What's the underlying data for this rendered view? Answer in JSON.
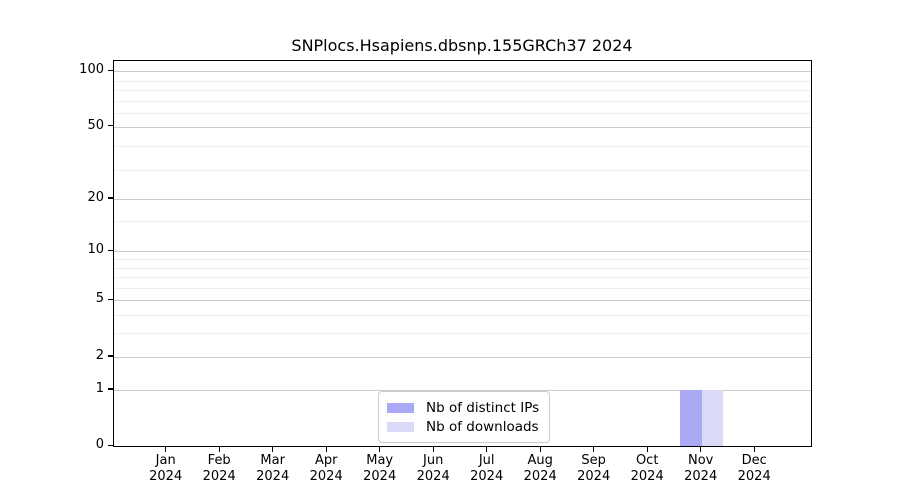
{
  "title": "SNPlocs.Hsapiens.dbsnp.155GRCh37 2024",
  "chart_data": {
    "type": "bar",
    "title": "SNPlocs.Hsapiens.dbsnp.155GRCh37 2024",
    "categories": [
      "Jan 2024",
      "Feb 2024",
      "Mar 2024",
      "Apr 2024",
      "May 2024",
      "Jun 2024",
      "Jul 2024",
      "Aug 2024",
      "Sep 2024",
      "Oct 2024",
      "Nov 2024",
      "Dec 2024"
    ],
    "series": [
      {
        "name": "Nb of distinct IPs",
        "color": "#a9a9f4",
        "values": [
          0,
          0,
          0,
          0,
          0,
          0,
          0,
          0,
          0,
          0,
          1,
          0
        ]
      },
      {
        "name": "Nb of downloads",
        "color": "#dadaf8",
        "values": [
          0,
          0,
          0,
          0,
          0,
          0,
          0,
          0,
          0,
          0,
          1,
          0
        ]
      }
    ],
    "xlabel": "",
    "ylabel": "",
    "yscale": "log10(1+value)",
    "ylim": [
      0,
      113
    ],
    "y_major_ticks": [
      0,
      1,
      2,
      5,
      10,
      20,
      50,
      100
    ],
    "y_minor_ticks": [
      3,
      4,
      6,
      7,
      8,
      9,
      15,
      29,
      39,
      59,
      69,
      79,
      89
    ],
    "grid": "on",
    "legend_position": "lower-center"
  },
  "colors": {
    "background": "#ffffff",
    "axis_spine": "#000000",
    "grid_major": "#cccccc",
    "grid_minor": "#eeeeee",
    "legend_border": "#cccccc",
    "text": "#000000",
    "bar_distinct_ips": "#a9a9f4",
    "bar_downloads": "#dadaf8"
  }
}
